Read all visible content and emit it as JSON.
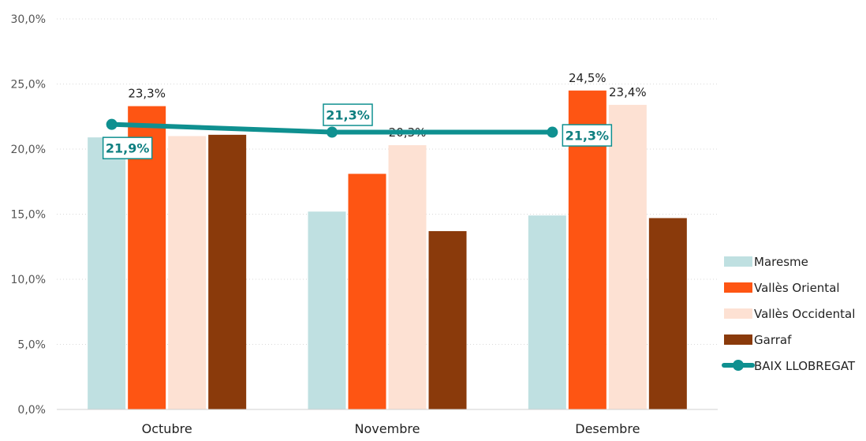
{
  "chart_data": {
    "type": "bar",
    "categories": [
      "Octubre",
      "Novembre",
      "Desembre"
    ],
    "ylim": [
      0,
      30
    ],
    "yticks": [
      "0,0%",
      "5,0%",
      "10,0%",
      "15,0%",
      "20,0%",
      "25,0%",
      "30,0%"
    ],
    "grid": true,
    "legend_position": "right",
    "series": [
      {
        "name": "Maresme",
        "color": "#bfe0e1",
        "values": [
          20.9,
          15.2,
          14.9
        ],
        "labels": [
          null,
          null,
          null
        ]
      },
      {
        "name": "Vallès Oriental",
        "color": "#fe5513",
        "values": [
          23.3,
          18.1,
          24.5
        ],
        "labels": [
          "23,3%",
          null,
          "24,5%"
        ]
      },
      {
        "name": "Vallès Occidental",
        "color": "#fde1d3",
        "values": [
          21.0,
          20.3,
          23.4
        ],
        "labels": [
          null,
          "20,3%",
          "23,4%"
        ]
      },
      {
        "name": "Garraf",
        "color": "#8a3a0b",
        "values": [
          21.1,
          13.7,
          14.7
        ],
        "labels": [
          null,
          null,
          null
        ]
      }
    ],
    "line_series": {
      "name": "BAIX LLOBREGAT",
      "color": "#0f9090",
      "values": [
        21.9,
        21.3,
        21.3
      ],
      "labels": [
        "21,9%",
        "21,3%",
        "21,3%"
      ]
    }
  }
}
